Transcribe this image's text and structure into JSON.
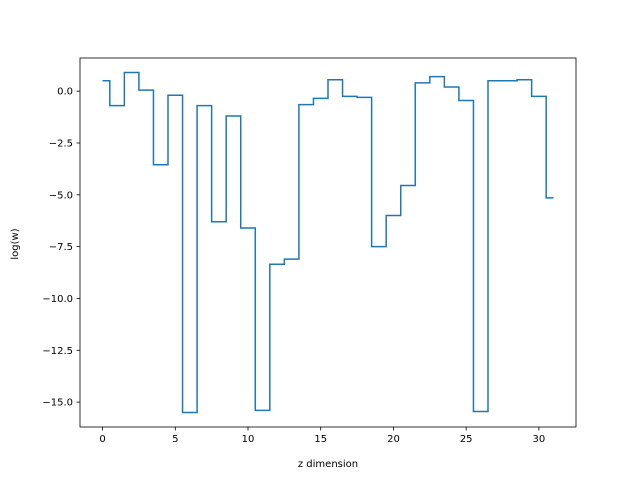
{
  "chart_data": {
    "type": "line",
    "style": "step",
    "title": "",
    "xlabel": "z dimension",
    "ylabel": "log(w)",
    "xlim": [
      -1.55,
      32.55
    ],
    "ylim": [
      -16.2,
      1.6
    ],
    "xticks": [
      0,
      5,
      10,
      15,
      20,
      25,
      30
    ],
    "xtick_labels": [
      "0",
      "5",
      "10",
      "15",
      "20",
      "25",
      "30"
    ],
    "yticks": [
      0.0,
      -2.5,
      -5.0,
      -7.5,
      -10.0,
      -12.5,
      -15.0
    ],
    "ytick_labels": [
      "0.0",
      "−2.5",
      "−5.0",
      "−7.5",
      "−10.0",
      "−12.5",
      "−15.0"
    ],
    "grid": false,
    "line_color": "#1f77b4",
    "series": [
      {
        "x": [
          0,
          1,
          2,
          3,
          4,
          5,
          6,
          7,
          8,
          9,
          10,
          11,
          12,
          13,
          14,
          15,
          16,
          17,
          18,
          19,
          20,
          21,
          22,
          23,
          24,
          25,
          26,
          27,
          28,
          29,
          30,
          31
        ],
        "values": [
          0.5,
          -0.7,
          0.9,
          0.05,
          -3.55,
          -0.2,
          -15.5,
          -0.7,
          -6.3,
          -1.2,
          -6.6,
          -15.4,
          -8.35,
          -8.1,
          -0.65,
          -0.35,
          0.55,
          -0.25,
          -0.3,
          -7.5,
          -6.0,
          -4.55,
          0.4,
          0.7,
          0.2,
          -0.45,
          -15.45,
          0.5,
          0.5,
          0.55,
          -0.25,
          -5.15
        ]
      }
    ]
  }
}
